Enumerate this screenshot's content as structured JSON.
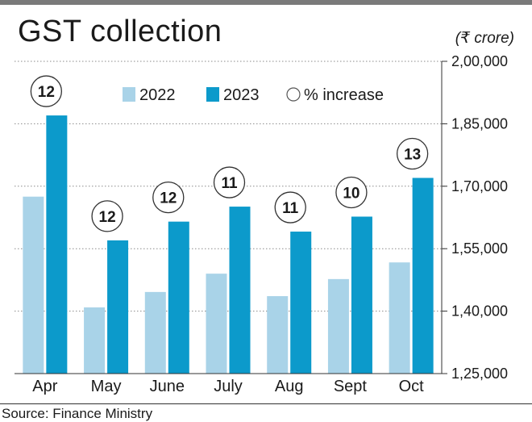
{
  "header": {
    "title": "GST collection",
    "unit": "(₹ crore)"
  },
  "legend": {
    "items": [
      {
        "label": "2022",
        "color": "#a9d3e8"
      },
      {
        "label": "2023",
        "color": "#0c9acb"
      },
      {
        "label": "% increase",
        "marker": "circle-outline-icon"
      }
    ]
  },
  "footer": {
    "source": "Source: Finance Ministry"
  },
  "colors": {
    "series_2022": "#a9d3e8",
    "series_2023": "#0c9acb",
    "grid": "#8a8a8a",
    "axis": "#333333"
  },
  "chart_data": {
    "type": "bar",
    "categories": [
      "Apr",
      "May",
      "June",
      "July",
      "Aug",
      "Sept",
      "Oct"
    ],
    "series": [
      {
        "name": "2022",
        "values": [
          167500,
          140900,
          144600,
          149000,
          143600,
          147700,
          151700
        ]
      },
      {
        "name": "2023",
        "values": [
          187000,
          157000,
          161500,
          165100,
          159100,
          162700,
          172000
        ]
      }
    ],
    "pct_increase": [
      "12",
      "12",
      "12",
      "11",
      "11",
      "10",
      "13"
    ],
    "ylim": [
      125000,
      200000
    ],
    "yticks": [
      125000,
      140000,
      155000,
      170000,
      185000,
      200000
    ],
    "ytick_labels": [
      "1,25,000",
      "1,40,000",
      "1,55,000",
      "1,70,000",
      "1,85,000",
      "2,00,000"
    ],
    "y_axis_position": "right",
    "grid": true,
    "legend_position": "top"
  }
}
